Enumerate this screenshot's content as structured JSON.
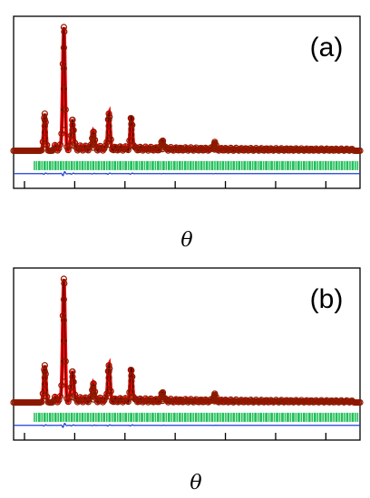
{
  "chart_data": [
    {
      "type": "scatter",
      "panel_label": "(a)",
      "xlabel": "θ",
      "ylabel": "",
      "xlim": [
        0,
        1
      ],
      "ylim": [
        -0.26,
        1.0
      ],
      "grid": false,
      "x_ticks": [
        0.0,
        0.145,
        0.29,
        0.435,
        0.58,
        0.725,
        0.87
      ],
      "series": [
        {
          "role": "observed",
          "marker": "circle",
          "color": "#8b1a00"
        },
        {
          "role": "calculated",
          "marker": "line",
          "color": "#ff0000"
        },
        {
          "role": "reflection positions",
          "marker": "tick",
          "color": "#22c05a"
        },
        {
          "role": "difference",
          "marker": "line",
          "color": "#1f3fd6"
        }
      ],
      "peaks": [
        {
          "x": 0.09,
          "y": 0.3
        },
        {
          "x": 0.145,
          "y": 1.0
        },
        {
          "x": 0.17,
          "y": 0.25
        },
        {
          "x": 0.23,
          "y": 0.15
        },
        {
          "x": 0.275,
          "y": 0.3
        },
        {
          "x": 0.34,
          "y": 0.26
        },
        {
          "x": 0.43,
          "y": 0.08
        },
        {
          "x": 0.58,
          "y": 0.06
        }
      ],
      "baseline": 0.0,
      "tick_band_y": -0.12,
      "difference_y": -0.185
    },
    {
      "type": "scatter",
      "panel_label": "(b)",
      "xlabel": "θ",
      "ylabel": "",
      "xlim": [
        0,
        1
      ],
      "ylim": [
        -0.26,
        1.0
      ],
      "grid": false,
      "x_ticks": [
        0.0,
        0.145,
        0.29,
        0.435,
        0.58,
        0.725,
        0.87
      ],
      "series": [
        {
          "role": "observed",
          "marker": "circle",
          "color": "#8b1a00"
        },
        {
          "role": "calculated",
          "marker": "line",
          "color": "#ff0000"
        },
        {
          "role": "reflection positions",
          "marker": "tick",
          "color": "#22c05a"
        },
        {
          "role": "difference",
          "marker": "line",
          "color": "#1f3fd6"
        }
      ],
      "peaks": [
        {
          "x": 0.09,
          "y": 0.3
        },
        {
          "x": 0.145,
          "y": 1.0
        },
        {
          "x": 0.17,
          "y": 0.25
        },
        {
          "x": 0.23,
          "y": 0.15
        },
        {
          "x": 0.275,
          "y": 0.3
        },
        {
          "x": 0.34,
          "y": 0.26
        },
        {
          "x": 0.43,
          "y": 0.08
        },
        {
          "x": 0.58,
          "y": 0.06
        }
      ],
      "baseline": 0.0,
      "tick_band_y": -0.12,
      "difference_y": -0.185
    }
  ]
}
